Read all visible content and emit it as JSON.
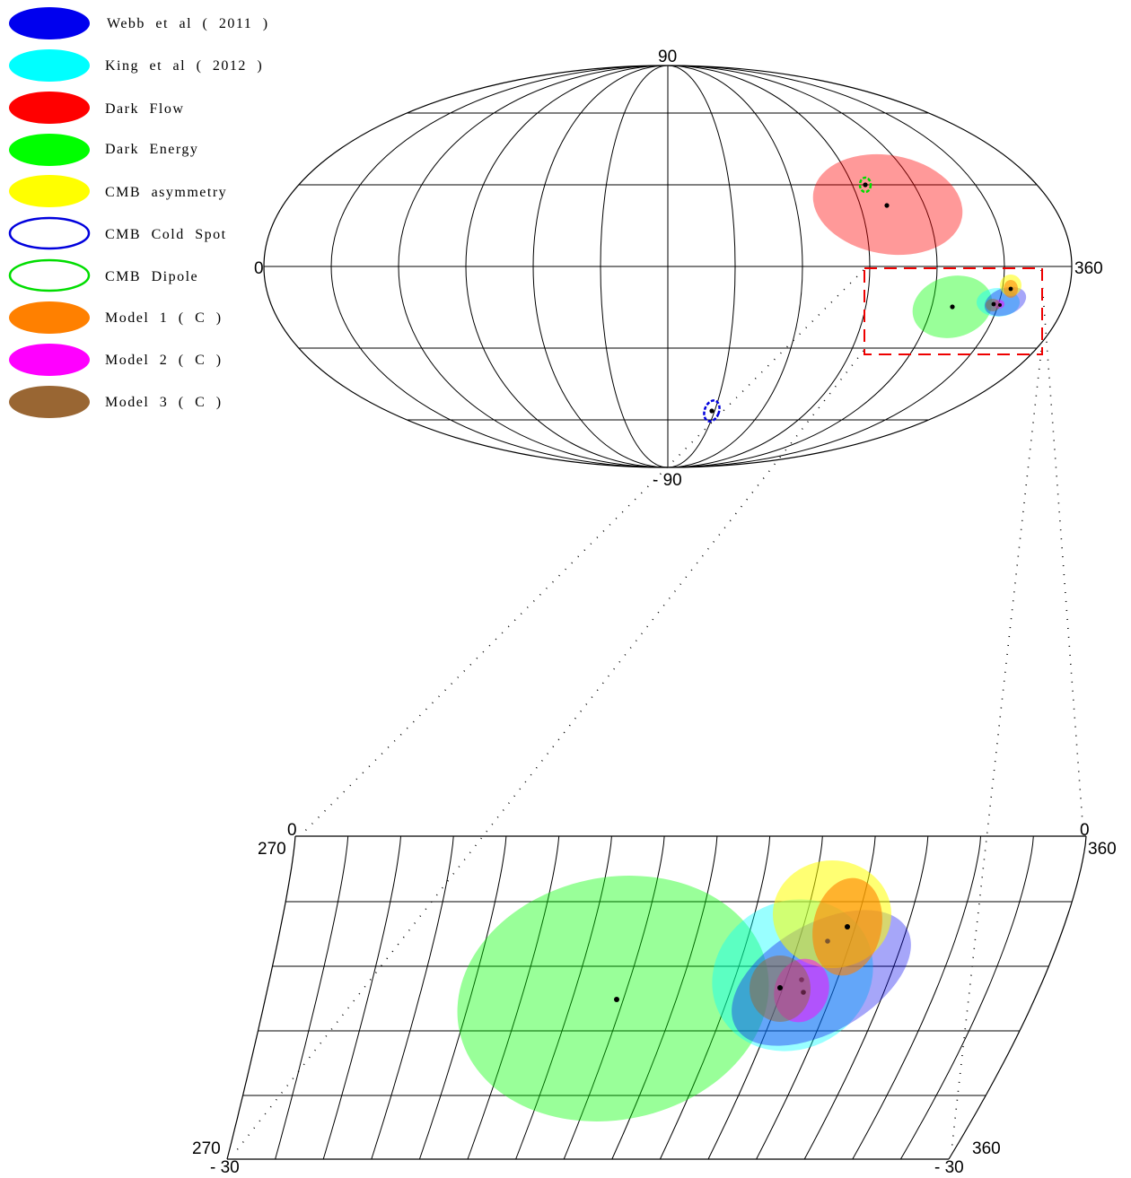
{
  "legend": [
    {
      "label": "Webb  et  al  ( 2011 )",
      "color": "#0000ee",
      "style": "filled"
    },
    {
      "label": "King  et  al  ( 2012 )",
      "color": "#00ffff",
      "style": "filled"
    },
    {
      "label": "Dark  Flow",
      "color": "#ff0000",
      "style": "filled"
    },
    {
      "label": "Dark  Energy",
      "color": "#00ff00",
      "style": "filled"
    },
    {
      "label": "CMB  asymmetry",
      "color": "#ffff00",
      "style": "filled"
    },
    {
      "label": "CMB  Cold  Spot",
      "color": "#0000dd",
      "style": "outline"
    },
    {
      "label": "CMB  Dipole",
      "color": "#00dd00",
      "style": "outline"
    },
    {
      "label": "Model  1  ( C )",
      "color": "#ff8000",
      "style": "filled"
    },
    {
      "label": "Model  2  ( C )",
      "color": "#ff00ff",
      "style": "filled"
    },
    {
      "label": "Model  3  ( C )",
      "color": "#996633",
      "style": "filled"
    }
  ],
  "sky_map": {
    "labels": {
      "top": "90",
      "bottom": "- 90",
      "left": "0",
      "right": "360"
    },
    "zoom_box_color": "#ee0000"
  },
  "zoom_map": {
    "labels": {
      "top_left_lat": "0",
      "top_left_lon": "270",
      "top_right_lat": "0",
      "top_right_lon": "360",
      "bottom_left_lon": "270",
      "bottom_left_lat": "- 30",
      "bottom_right_lon": "360",
      "bottom_right_lat": "- 30"
    }
  }
}
